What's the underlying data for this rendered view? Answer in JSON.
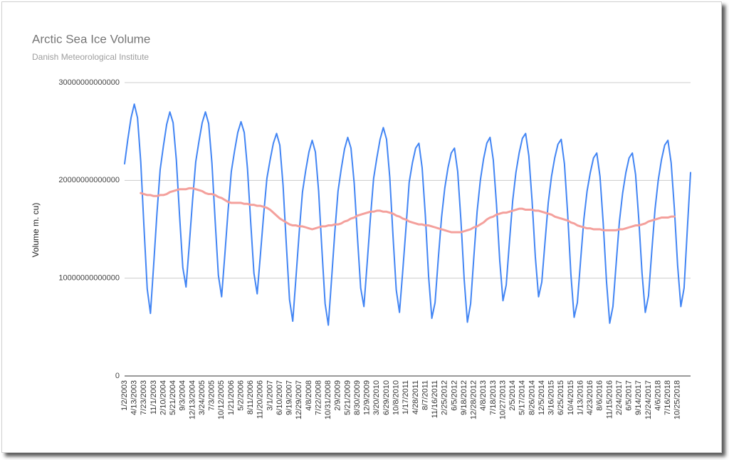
{
  "chart_data": {
    "type": "line",
    "title": "Arctic Sea Ice Volume",
    "subtitle": "Danish Meteorological Institute",
    "y_label": "Volume m. cu)",
    "ylim": [
      0,
      30000000000000
    ],
    "yticks": [
      0,
      10000000000000,
      20000000000000,
      30000000000000
    ],
    "grid": true,
    "categories": [
      "1/2/2003",
      null,
      null,
      "4/13/2003",
      null,
      null,
      "7/23/2003",
      null,
      null,
      "11/1/2003",
      null,
      null,
      "2/10/2004",
      null,
      null,
      "5/21/2004",
      null,
      null,
      "9/3/2004",
      null,
      null,
      "12/13/2004",
      null,
      null,
      "3/24/2005",
      null,
      null,
      "7/3/2005",
      null,
      null,
      "10/12/2005",
      null,
      null,
      "1/21/2006",
      null,
      null,
      "5/2/2006",
      null,
      null,
      "8/11/2006",
      null,
      null,
      "11/20/2006",
      null,
      null,
      "3/1/2007",
      null,
      null,
      "6/10/2007",
      null,
      null,
      "9/19/2007",
      null,
      null,
      "12/29/2007",
      null,
      null,
      "4/8/2008",
      null,
      null,
      "7/22/2008",
      null,
      null,
      "10/31/2008",
      null,
      null,
      "2/9/2009",
      null,
      null,
      "5/21/2009",
      null,
      null,
      "8/30/2009",
      null,
      null,
      "12/9/2009",
      null,
      null,
      "3/20/2010",
      null,
      null,
      "6/29/2010",
      null,
      null,
      "10/8/2010",
      null,
      null,
      "1/17/2011",
      null,
      null,
      "4/28/2011",
      null,
      null,
      "8/7/2011",
      null,
      null,
      "11/16/2011",
      null,
      null,
      "2/25/2012",
      null,
      null,
      "6/5/2012",
      null,
      null,
      "9/18/2012",
      null,
      null,
      "12/28/2012",
      null,
      null,
      "4/8/2013",
      null,
      null,
      "7/18/2013",
      null,
      null,
      "10/27/2013",
      null,
      null,
      "2/5/2014",
      null,
      null,
      "5/17/2014",
      null,
      null,
      "8/26/2014",
      null,
      null,
      "12/5/2014",
      null,
      null,
      "3/16/2015",
      null,
      null,
      "6/25/2015",
      null,
      null,
      "10/4/2015",
      null,
      null,
      "1/13/2016",
      null,
      null,
      "4/23/2016",
      null,
      null,
      "8/6/2016",
      null,
      null,
      "11/15/2016",
      null,
      null,
      "2/24/2017",
      null,
      null,
      "6/5/2017",
      null,
      null,
      "9/14/2017",
      null,
      null,
      "12/24/2017",
      null,
      null,
      "4/6/2018",
      null,
      null,
      "7/16/2018",
      null,
      null,
      "10/25/2018",
      null,
      null,
      null,
      null
    ],
    "series": [
      {
        "color": "#4285f4",
        "width": 2,
        "values": [
          21700000000000.0,
          24200000000000.0,
          26400000000000.0,
          27800000000000.0,
          26400000000000.0,
          21900000000000.0,
          15200000000000.0,
          8900000000000.0,
          6400000000000.0,
          11400000000000.0,
          16600000000000.0,
          21100000000000.0,
          23500000000000.0,
          25700000000000.0,
          27000000000000.0,
          25900000000000.0,
          22100000000000.0,
          16400000000000.0,
          11100000000000.0,
          9100000000000.0,
          13400000000000.0,
          17900000000000.0,
          21900000000000.0,
          24000000000000.0,
          25900000000000.0,
          27000000000000.0,
          25800000000000.0,
          21800000000000.0,
          15900000000000.0,
          10300000000000.0,
          8100000000000.0,
          12400000000000.0,
          16900000000000.0,
          20900000000000.0,
          23000000000000.0,
          24900000000000.0,
          26000000000000.0,
          24900000000000.0,
          21200000000000.0,
          15700000000000.0,
          10500000000000.0,
          8400000000000.0,
          12400000000000.0,
          16500000000000.0,
          20200000000000.0,
          22100000000000.0,
          23800000000000.0,
          24800000000000.0,
          23600000000000.0,
          19500000000000.0,
          13500000000000.0,
          7800000000000.0,
          5600000000000.0,
          10100000000000.0,
          14700000000000.0,
          18800000000000.0,
          21000000000000.0,
          22900000000000.0,
          24100000000000.0,
          22900000000000.0,
          18900000000000.0,
          13000000000000.0,
          7400000000000.0,
          5200000000000.0,
          9900000000000.0,
          14700000000000.0,
          18900000000000.0,
          21200000000000.0,
          23200000000000.0,
          24400000000000.0,
          23300000000000.0,
          19700000000000.0,
          14200000000000.0,
          9000000000000.0,
          7100000000000.0,
          11500000000000.0,
          16100000000000.0,
          20200000000000.0,
          22300000000000.0,
          24200000000000.0,
          25400000000000.0,
          24200000000000.0,
          20300000000000.0,
          14300000000000.0,
          8800000000000.0,
          6500000000000.0,
          10700000000000.0,
          15100000000000.0,
          19800000000000.0,
          21800000000000.0,
          23300000000000.0,
          23800000000000.0,
          21300000000000.0,
          16400000000000.0,
          10200000000000.0,
          5900000000000.0,
          7500000000000.0,
          12000000000000.0,
          16200000000000.0,
          19200000000000.0,
          21300000000000.0,
          22800000000000.0,
          23300000000000.0,
          20900000000000.0,
          15900000000000.0,
          9900000000000.0,
          5500000000000.0,
          7400000000000.0,
          12200000000000.0,
          16800000000000.0,
          20000000000000.0,
          22200000000000.0,
          23800000000000.0,
          24400000000000.0,
          22100000000000.0,
          17500000000000.0,
          11800000000000.0,
          7700000000000.0,
          9300000000000.0,
          13700000000000.0,
          17900000000000.0,
          20800000000000.0,
          22800000000000.0,
          24300000000000.0,
          24800000000000.0,
          22500000000000.0,
          17900000000000.0,
          12200000000000.0,
          8100000000000.0,
          9600000000000.0,
          13700000000000.0,
          17700000000000.0,
          20400000000000.0,
          22300000000000.0,
          23700000000000.0,
          24200000000000.0,
          21700000000000.0,
          16600000000000.0,
          10400000000000.0,
          6000000000000.0,
          7500000000000.0,
          11800000000000.0,
          16000000000000.0,
          18900000000000.0,
          20800000000000.0,
          22300000000000.0,
          22800000000000.0,
          20400000000000.0,
          15600000000000.0,
          9700000000000.0,
          5400000000000.0,
          7100000000000.0,
          11500000000000.0,
          15800000000000.0,
          18700000000000.0,
          20800000000000.0,
          22300000000000.0,
          22800000000000.0,
          20600000000000.0,
          16000000000000.0,
          10500000000000.0,
          6500000000000.0,
          8200000000000.0,
          12700000000000.0,
          17000000000000.0,
          20000000000000.0,
          22100000000000.0,
          23600000000000.0,
          24100000000000.0,
          21800000000000.0,
          17100000000000.0,
          11300000000000.0,
          7100000000000.0,
          9000000000000.0,
          15000000000000.0,
          20800000000000.0
        ]
      },
      {
        "color": "#f4a09c",
        "width": 3,
        "values": [
          null,
          null,
          null,
          null,
          null,
          18700000000000.0,
          18600000000000.0,
          18500000000000.0,
          18500000000000.0,
          18400000000000.0,
          18400000000000.0,
          18500000000000.0,
          18500000000000.0,
          18600000000000.0,
          18800000000000.0,
          18900000000000.0,
          19000000000000.0,
          19100000000000.0,
          19100000000000.0,
          19100000000000.0,
          19200000000000.0,
          19200000000000.0,
          19100000000000.0,
          19000000000000.0,
          18900000000000.0,
          18700000000000.0,
          18600000000000.0,
          18600000000000.0,
          18500000000000.0,
          18300000000000.0,
          18200000000000.0,
          18000000000000.0,
          17800000000000.0,
          17700000000000.0,
          17700000000000.0,
          17700000000000.0,
          17700000000000.0,
          17600000000000.0,
          17600000000000.0,
          17500000000000.0,
          17500000000000.0,
          17400000000000.0,
          17400000000000.0,
          17300000000000.0,
          17200000000000.0,
          17000000000000.0,
          16700000000000.0,
          16400000000000.0,
          16100000000000.0,
          15900000000000.0,
          15700000000000.0,
          15500000000000.0,
          15400000000000.0,
          15400000000000.0,
          15300000000000.0,
          15300000000000.0,
          15200000000000.0,
          15100000000000.0,
          15000000000000.0,
          15100000000000.0,
          15200000000000.0,
          15300000000000.0,
          15300000000000.0,
          15400000000000.0,
          15400000000000.0,
          15500000000000.0,
          15500000000000.0,
          15600000000000.0,
          15800000000000.0,
          15900000000000.0,
          16100000000000.0,
          16200000000000.0,
          16400000000000.0,
          16500000000000.0,
          16600000000000.0,
          16700000000000.0,
          16800000000000.0,
          16800000000000.0,
          16900000000000.0,
          16900000000000.0,
          16800000000000.0,
          16800000000000.0,
          16700000000000.0,
          16600000000000.0,
          16400000000000.0,
          16300000000000.0,
          16100000000000.0,
          16000000000000.0,
          15800000000000.0,
          15700000000000.0,
          15600000000000.0,
          15500000000000.0,
          15500000000000.0,
          15400000000000.0,
          15400000000000.0,
          15300000000000.0,
          15200000000000.0,
          15100000000000.0,
          15000000000000.0,
          14900000000000.0,
          14800000000000.0,
          14700000000000.0,
          14700000000000.0,
          14700000000000.0,
          14700000000000.0,
          14800000000000.0,
          14900000000000.0,
          15000000000000.0,
          15200000000000.0,
          15300000000000.0,
          15500000000000.0,
          15700000000000.0,
          16000000000000.0,
          16200000000000.0,
          16300000000000.0,
          16500000000000.0,
          16600000000000.0,
          16700000000000.0,
          16700000000000.0,
          16800000000000.0,
          16900000000000.0,
          17000000000000.0,
          17100000000000.0,
          17100000000000.0,
          17000000000000.0,
          17000000000000.0,
          17000000000000.0,
          16900000000000.0,
          16900000000000.0,
          16800000000000.0,
          16700000000000.0,
          16600000000000.0,
          16500000000000.0,
          16300000000000.0,
          16200000000000.0,
          16100000000000.0,
          16000000000000.0,
          15900000000000.0,
          15700000000000.0,
          15600000000000.0,
          15400000000000.0,
          15300000000000.0,
          15200000000000.0,
          15100000000000.0,
          15100000000000.0,
          15000000000000.0,
          15000000000000.0,
          15000000000000.0,
          14900000000000.0,
          14900000000000.0,
          14900000000000.0,
          14900000000000.0,
          14900000000000.0,
          15000000000000.0,
          15000000000000.0,
          15100000000000.0,
          15200000000000.0,
          15300000000000.0,
          15400000000000.0,
          15400000000000.0,
          15500000000000.0,
          15600000000000.0,
          15800000000000.0,
          15900000000000.0,
          16000000000000.0,
          16100000000000.0,
          16200000000000.0,
          16200000000000.0,
          16200000000000.0,
          16300000000000.0,
          16300000000000.0,
          null,
          null,
          null,
          null,
          null
        ]
      }
    ]
  }
}
